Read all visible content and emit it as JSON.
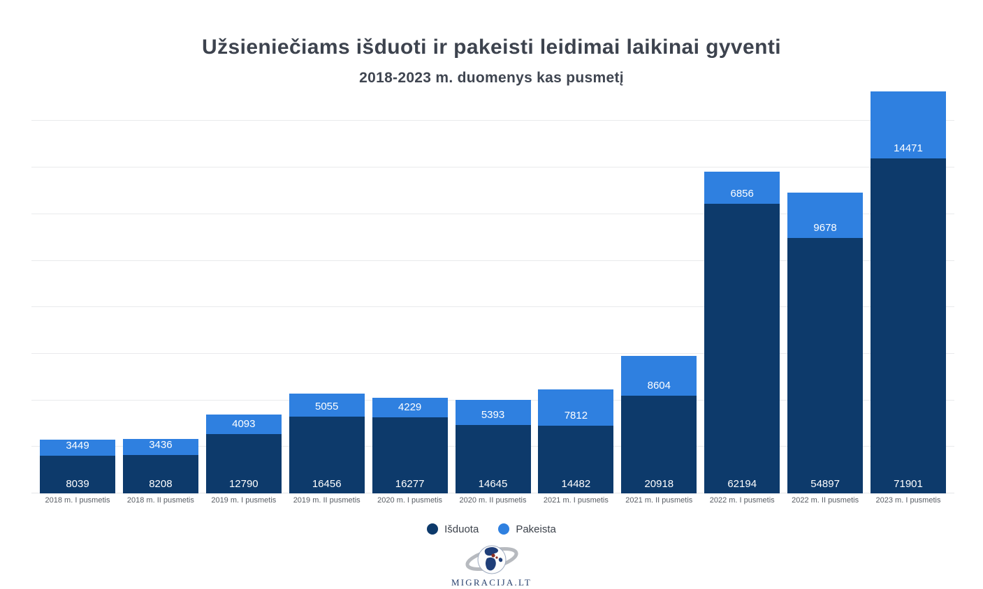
{
  "chart_data": {
    "type": "bar",
    "stacked": true,
    "title": "Užsieniečiams išduoti ir pakeisti leidimai laikinai gyventi",
    "subtitle": "2018-2023 m. duomenys kas pusmetį",
    "categories": [
      "2018 m. I pusmetis",
      "2018 m. II pusmetis",
      "2019 m. I pusmetis",
      "2019 m. II pusmetis",
      "2020 m. I pusmetis",
      "2020 m. II pusmetis",
      "2021 m. I pusmetis",
      "2021 m. II pusmetis",
      "2022 m. I pusmetis",
      "2022 m. II pusmetis",
      "2023 m. I pusmetis"
    ],
    "series": [
      {
        "name": "Išduota",
        "color": "#0d3a6b",
        "values": [
          8039,
          8208,
          12790,
          16456,
          16277,
          14645,
          14482,
          20918,
          62194,
          54897,
          71901
        ]
      },
      {
        "name": "Pakeista",
        "color": "#2f80e0",
        "values": [
          3449,
          3436,
          4093,
          5055,
          4229,
          5393,
          7812,
          8604,
          6856,
          9678,
          14471
        ]
      }
    ],
    "xlabel": "",
    "ylabel": "",
    "ylim": [
      0,
      86500
    ],
    "gridline_step": 10000,
    "grid": true,
    "y_axis_labels": "hidden",
    "legend_position": "bottom"
  },
  "footer": {
    "logo_text": "MIGRACIJA.LT"
  }
}
